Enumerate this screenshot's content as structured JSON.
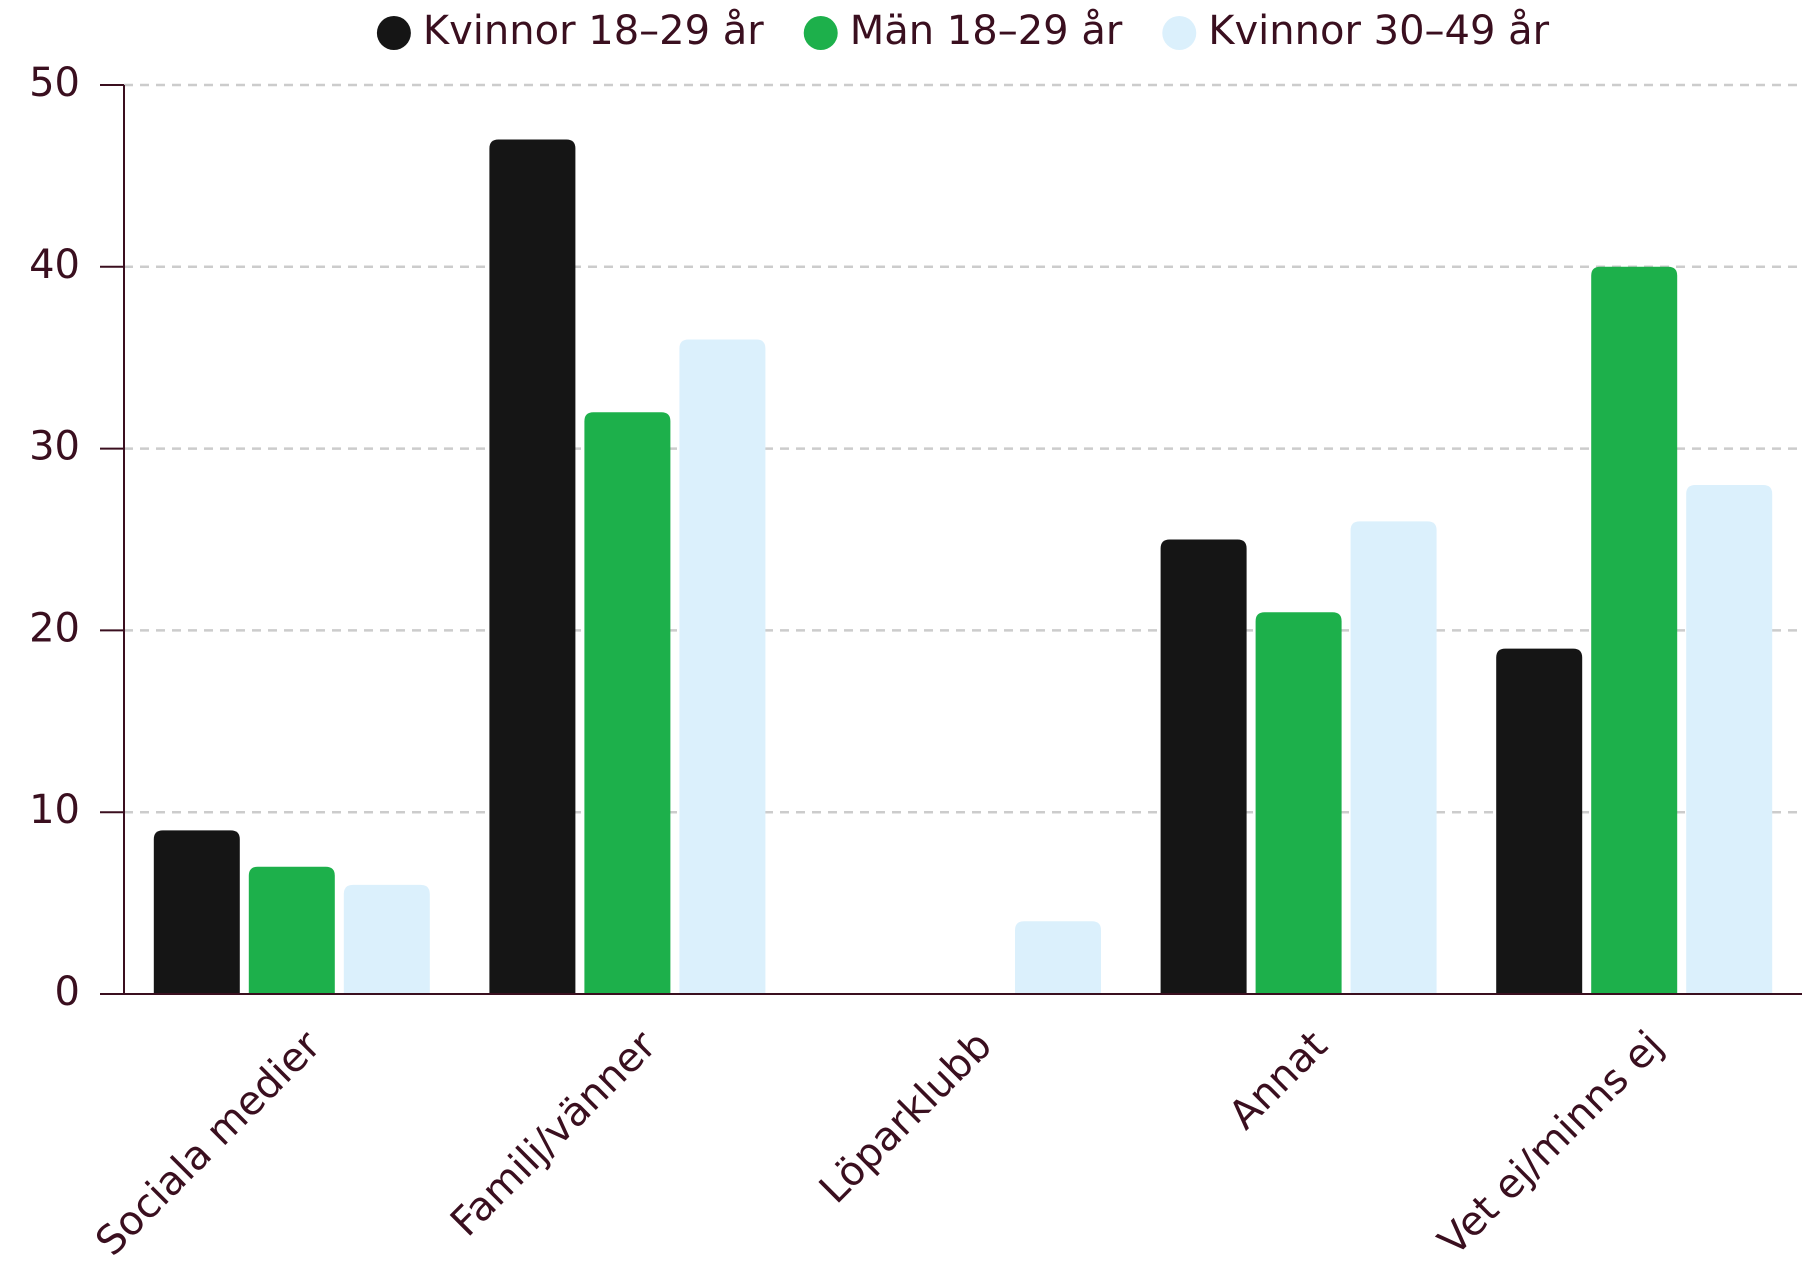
{
  "chart_data": {
    "type": "bar",
    "categories": [
      "Sociala medier",
      "Familj/vänner",
      "Löparklubb",
      "Annat",
      "Vet ej/minns ej"
    ],
    "series": [
      {
        "name": "Kvinnor 18–29 år",
        "color": "#151515",
        "values": [
          9,
          47,
          0,
          25,
          19
        ]
      },
      {
        "name": "Män 18–29 år",
        "color": "#1db04b",
        "values": [
          7,
          32,
          0,
          21,
          40
        ]
      },
      {
        "name": "Kvinnor 30–49 år",
        "color": "#dbf0fc",
        "values": [
          6,
          36,
          4,
          26,
          28
        ]
      }
    ],
    "ylim": [
      0,
      50
    ],
    "yticks": [
      0,
      10,
      20,
      30,
      40,
      50
    ],
    "grid": true,
    "legend": "top"
  }
}
